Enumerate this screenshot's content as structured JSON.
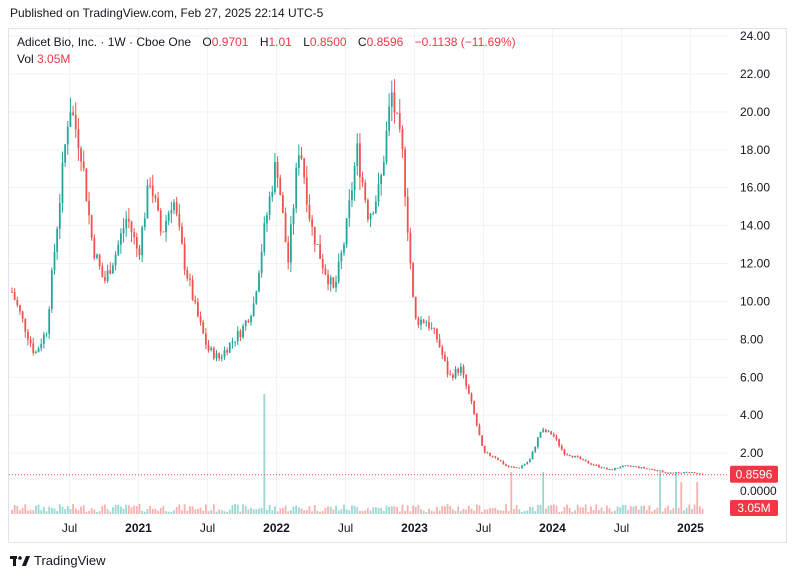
{
  "header": {
    "published_text": "Published on TradingView.com, Feb 27, 2025 22:14 UTC-5"
  },
  "legend": {
    "symbol": "Adicet Bio, Inc. · 1W · Cboe One",
    "o_label": "O",
    "o_value": "0.9701",
    "h_label": "H",
    "h_value": "1.01",
    "l_label": "L",
    "l_value": "0.8500",
    "c_label": "C",
    "c_value": "0.8596",
    "change": "−0.1138 (−11.69%)",
    "vol_label": "Vol",
    "vol_value": "3.05M"
  },
  "footer": {
    "brand": "TradingView"
  },
  "colors": {
    "up": "#26a69a",
    "down": "#ef5350",
    "grid": "#f0f3fa",
    "price_line": "#f23645"
  },
  "chart_data": {
    "type": "candlestick",
    "title": "Adicet Bio, Inc. · 1W · Cboe One",
    "y_ticks": [
      "24.00",
      "22.00",
      "20.00",
      "18.00",
      "16.00",
      "14.00",
      "12.00",
      "10.00",
      "8.00",
      "6.00",
      "4.00",
      "2.00",
      "0.0000"
    ],
    "x_ticks": [
      "Jul",
      "2021",
      "Jul",
      "2022",
      "Jul",
      "2023",
      "Jul",
      "2024",
      "Jul",
      "2025"
    ],
    "ylim": [
      0,
      24
    ],
    "last_price": 0.8596,
    "last_price_label": "0.8596",
    "last_volume_label": "3.05M",
    "series": [
      {
        "date": "2020-02",
        "close": 10.5
      },
      {
        "date": "2020-04",
        "close": 7.2
      },
      {
        "date": "2020-05",
        "close": 8.5
      },
      {
        "date": "2020-06",
        "close": 14.5
      },
      {
        "date": "2020-07",
        "close": 20.5
      },
      {
        "date": "2020-08",
        "close": 18.0
      },
      {
        "date": "2020-09",
        "close": 13.0
      },
      {
        "date": "2020-10",
        "close": 11.0
      },
      {
        "date": "2020-11",
        "close": 12.5
      },
      {
        "date": "2020-12",
        "close": 14.5
      },
      {
        "date": "2021-01",
        "close": 12.5
      },
      {
        "date": "2021-02",
        "close": 16.5
      },
      {
        "date": "2021-03",
        "close": 13.5
      },
      {
        "date": "2021-04",
        "close": 15.5
      },
      {
        "date": "2021-05",
        "close": 12.0
      },
      {
        "date": "2021-06",
        "close": 9.5
      },
      {
        "date": "2021-07",
        "close": 7.5
      },
      {
        "date": "2021-08",
        "close": 7.0
      },
      {
        "date": "2021-09",
        "close": 7.8
      },
      {
        "date": "2021-10",
        "close": 8.5
      },
      {
        "date": "2021-11",
        "close": 9.8
      },
      {
        "date": "2021-12",
        "close": 14.0
      },
      {
        "date": "2022-01",
        "close": 17.5
      },
      {
        "date": "2022-02",
        "close": 12.0
      },
      {
        "date": "2022-03",
        "close": 18.5
      },
      {
        "date": "2022-04",
        "close": 14.0
      },
      {
        "date": "2022-05",
        "close": 12.0
      },
      {
        "date": "2022-06",
        "close": 10.5
      },
      {
        "date": "2022-07",
        "close": 13.5
      },
      {
        "date": "2022-08",
        "close": 18.0
      },
      {
        "date": "2022-09",
        "close": 14.5
      },
      {
        "date": "2022-10",
        "close": 16.0
      },
      {
        "date": "2022-11",
        "close": 21.0
      },
      {
        "date": "2022-12",
        "close": 17.5
      },
      {
        "date": "2023-01",
        "close": 9.0
      },
      {
        "date": "2023-02",
        "close": 9.0
      },
      {
        "date": "2023-03",
        "close": 8.0
      },
      {
        "date": "2023-04",
        "close": 6.0
      },
      {
        "date": "2023-05",
        "close": 6.5
      },
      {
        "date": "2023-06",
        "close": 4.5
      },
      {
        "date": "2023-07",
        "close": 2.0
      },
      {
        "date": "2023-08",
        "close": 1.8
      },
      {
        "date": "2023-09",
        "close": 1.3
      },
      {
        "date": "2023-10",
        "close": 1.2
      },
      {
        "date": "2023-11",
        "close": 1.6
      },
      {
        "date": "2023-12",
        "close": 3.2
      },
      {
        "date": "2024-01",
        "close": 3.0
      },
      {
        "date": "2024-02",
        "close": 2.0
      },
      {
        "date": "2024-03",
        "close": 1.8
      },
      {
        "date": "2024-04",
        "close": 1.5
      },
      {
        "date": "2024-05",
        "close": 1.3
      },
      {
        "date": "2024-06",
        "close": 1.1
      },
      {
        "date": "2024-07",
        "close": 1.3
      },
      {
        "date": "2024-08",
        "close": 1.3
      },
      {
        "date": "2024-09",
        "close": 1.2
      },
      {
        "date": "2024-10",
        "close": 1.1
      },
      {
        "date": "2024-11",
        "close": 0.95
      },
      {
        "date": "2024-12",
        "close": 0.95
      },
      {
        "date": "2025-01",
        "close": 1.0
      },
      {
        "date": "2025-02",
        "close": 0.86
      }
    ]
  }
}
